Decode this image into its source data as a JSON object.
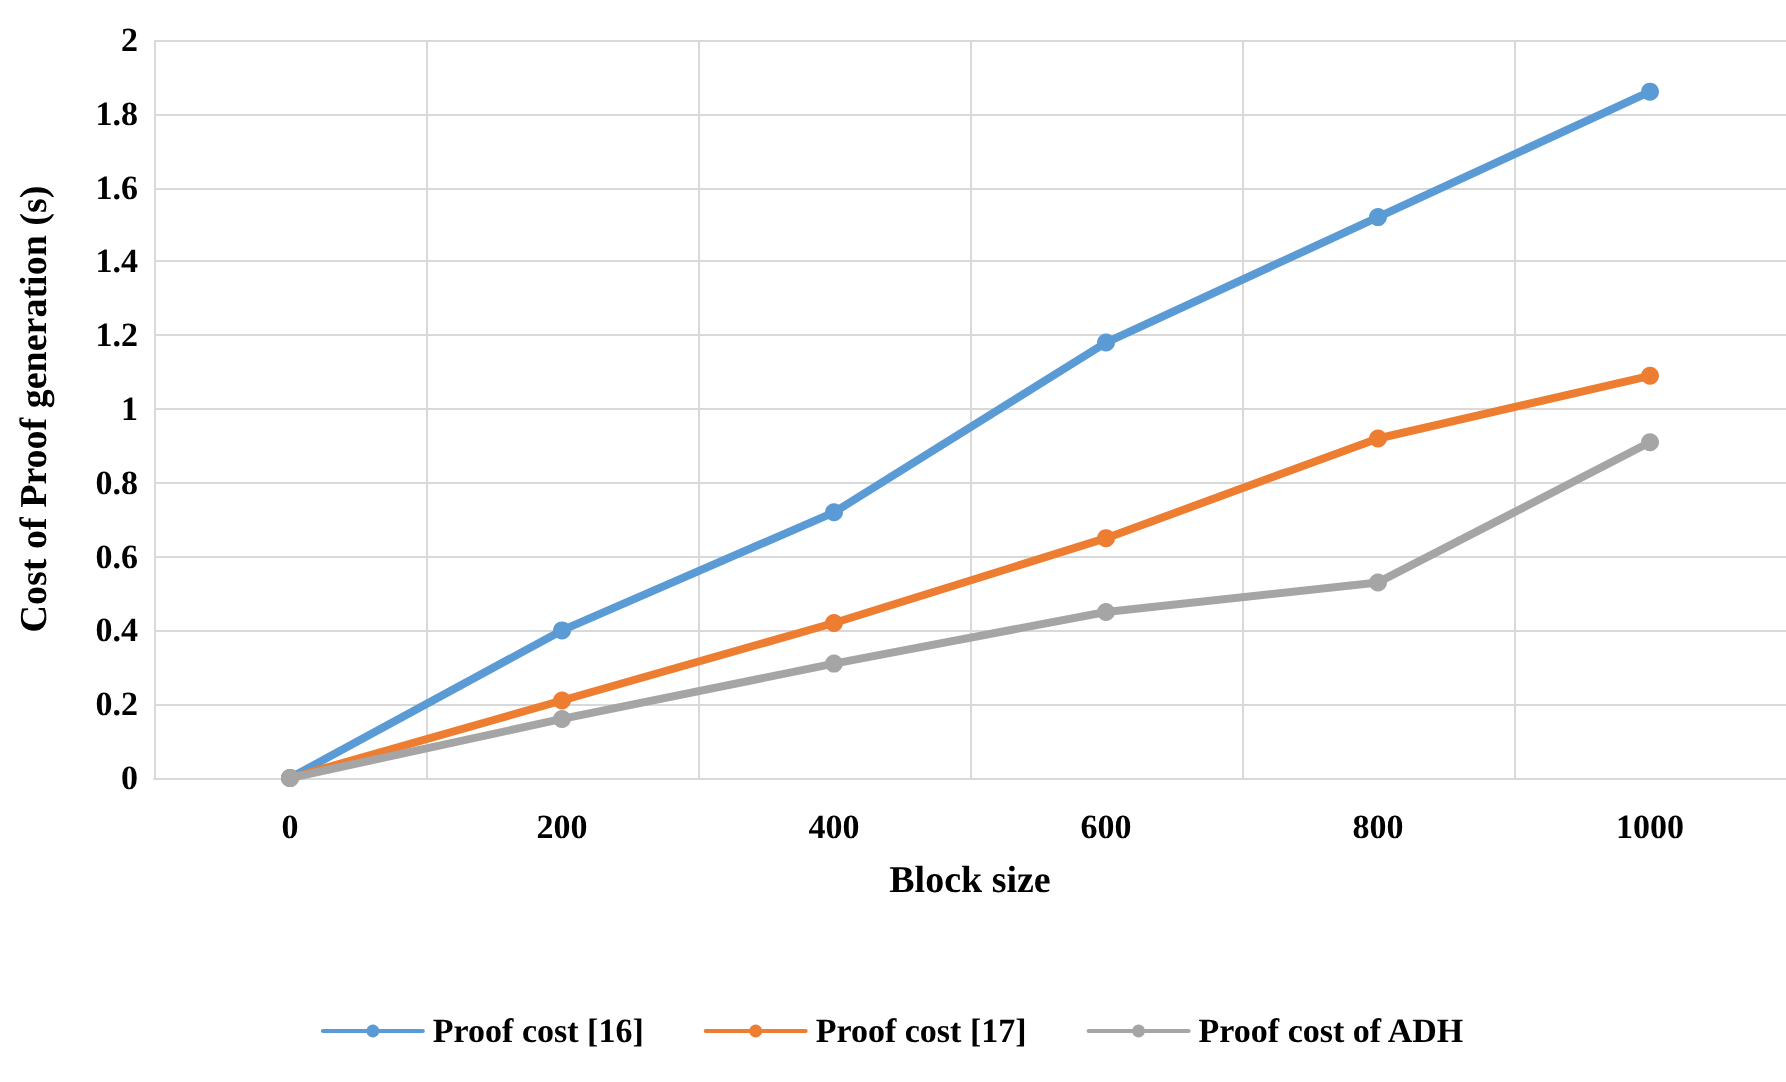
{
  "chart_data": {
    "type": "line",
    "xlabel": "Block size",
    "ylabel": "Cost of Proof generation (s)",
    "categories": [
      "0",
      "200",
      "400",
      "600",
      "800",
      "1000"
    ],
    "series": [
      {
        "name": "Proof cost [16]",
        "color": "#5b9bd5",
        "values": [
          0,
          0.4,
          0.72,
          1.18,
          1.52,
          1.86
        ]
      },
      {
        "name": "Proof cost [17]",
        "color": "#ed7d31",
        "values": [
          0,
          0.21,
          0.42,
          0.65,
          0.92,
          1.09
        ]
      },
      {
        "name": "Proof cost of ADH",
        "color": "#a5a5a5",
        "values": [
          0,
          0.16,
          0.31,
          0.45,
          0.53,
          0.91
        ]
      }
    ],
    "ylim": [
      0,
      2
    ],
    "yticks": [
      0,
      0.2,
      0.4,
      0.6,
      0.8,
      1,
      1.2,
      1.4,
      1.6,
      1.8,
      2
    ],
    "grid": true,
    "legend": "bottom",
    "marker": "circle",
    "line_style": "solid"
  }
}
